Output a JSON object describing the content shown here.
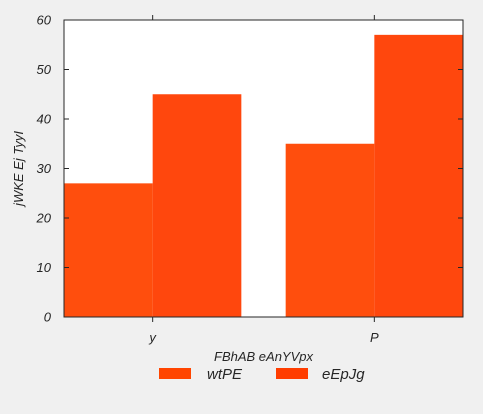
{
  "chart_data": {
    "type": "bar",
    "categories": [
      "y",
      "P"
    ],
    "series": [
      {
        "name": "wtPE",
        "values": [
          27,
          35
        ],
        "color": "#ff4500"
      },
      {
        "name": "eEpJg",
        "values": [
          45,
          57
        ],
        "color": "#ff3d00"
      }
    ],
    "xlabel": "FBhAB eAnYVpx",
    "ylabel": "jWKE Ej TyyI",
    "ylim": [
      0,
      60
    ],
    "yticks": [
      0,
      10,
      20,
      30,
      40,
      50,
      60
    ],
    "grid": false,
    "legend_position": "bottom-center"
  },
  "colors": {
    "background": "#f0f0f0",
    "plot_area": "#ffffff",
    "axis": "#262626"
  }
}
